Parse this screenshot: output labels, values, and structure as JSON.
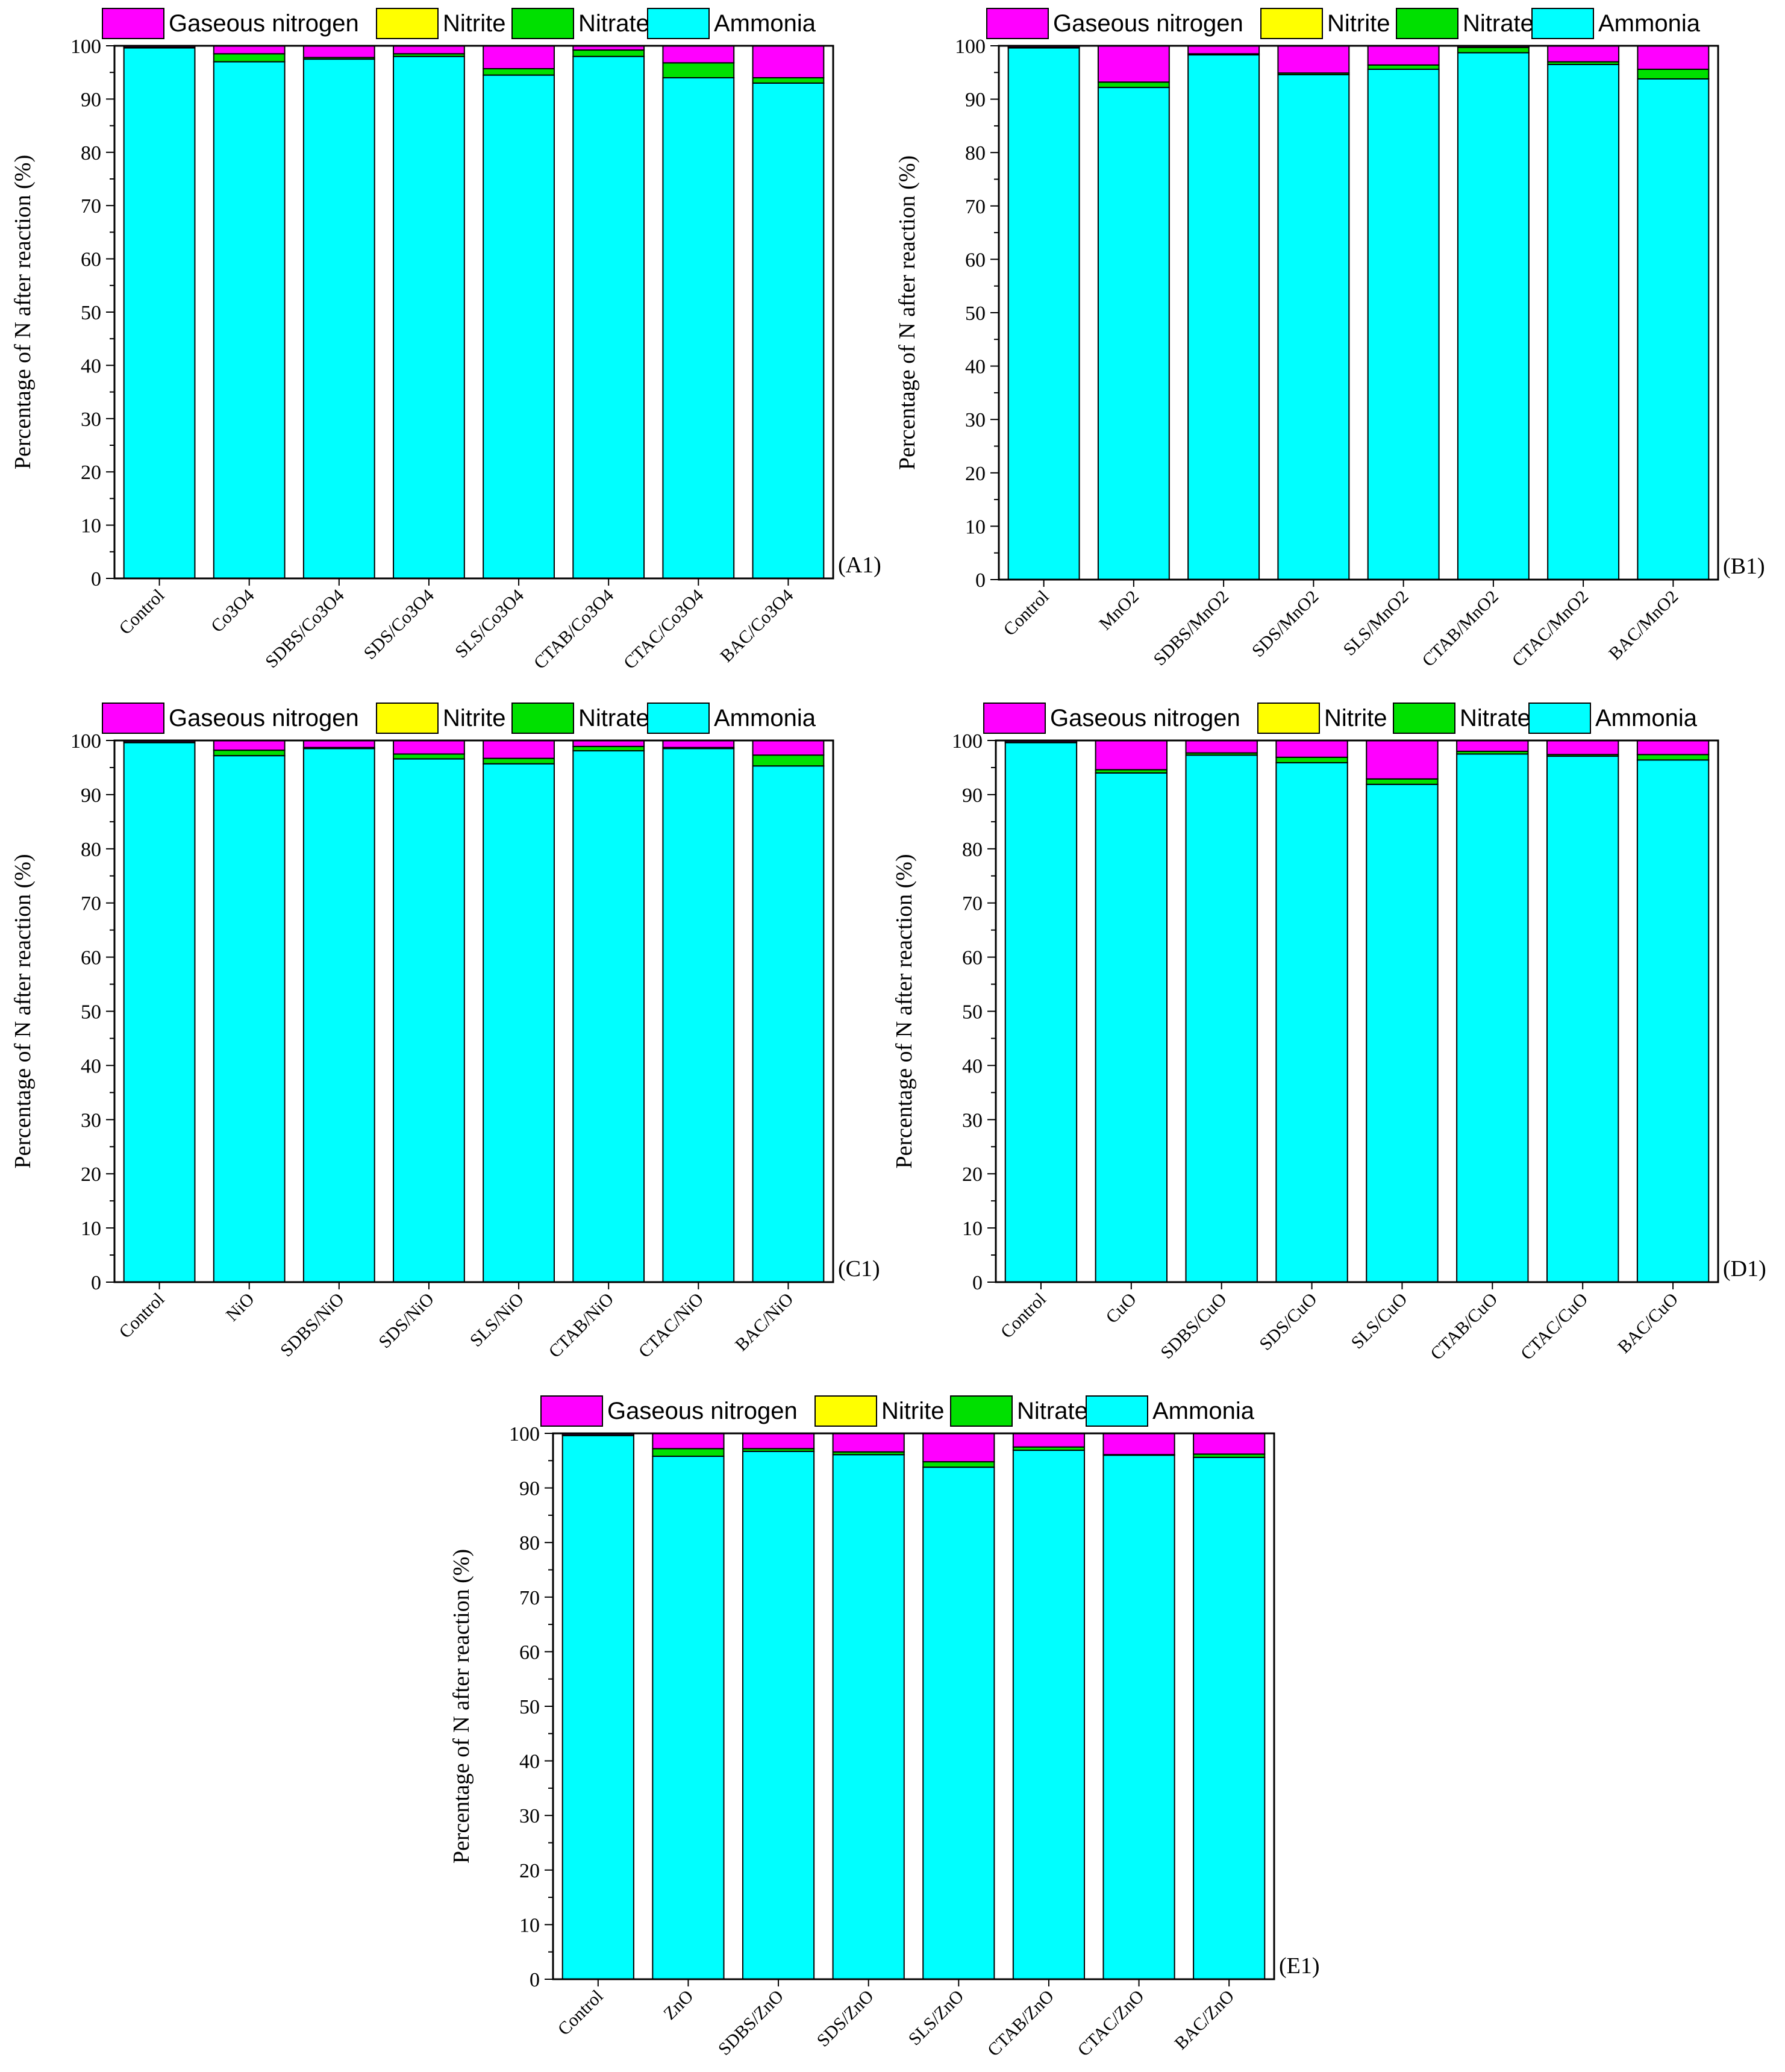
{
  "colors": {
    "ammonia": "#00FFFF",
    "nitrate": "#00E000",
    "nitrite": "#FFFF00",
    "gaseous": "#FF00FF",
    "frame": "#000000"
  },
  "legend": [
    "Gaseous nitrogen",
    "Nitrite",
    "Nitrate",
    "Ammonia"
  ],
  "chart_data": [
    {
      "type": "bar",
      "stacked": true,
      "panel_label": "(A1)",
      "ylabel": "Percentage of N after reaction (%)",
      "ylim": [
        0,
        100
      ],
      "yticks": [
        "0",
        "10",
        "20",
        "30",
        "40",
        "50",
        "60",
        "70",
        "80",
        "90",
        "100"
      ],
      "categories": [
        "Control",
        "Co3O4",
        "SDBS/Co3O4",
        "SDS/Co3O4",
        "SLS/Co3O4",
        "CTAB/Co3O4",
        "CTAC/Co3O4",
        "BAC/Co3O4"
      ],
      "series": [
        {
          "name": "Ammonia",
          "values": [
            99.6,
            97.0,
            97.5,
            98.0,
            94.5,
            98.0,
            94.0,
            93.0
          ]
        },
        {
          "name": "Nitrate",
          "values": [
            0.1,
            1.5,
            0.3,
            0.5,
            1.2,
            1.2,
            2.8,
            1.0
          ]
        },
        {
          "name": "Nitrite",
          "values": [
            0.0,
            0.0,
            0.0,
            0.0,
            0.0,
            0.0,
            0.0,
            0.0
          ]
        },
        {
          "name": "Gaseous nitrogen",
          "values": [
            0.3,
            1.5,
            2.2,
            1.5,
            4.3,
            0.8,
            3.2,
            6.0
          ]
        }
      ]
    },
    {
      "type": "bar",
      "stacked": true,
      "panel_label": "(B1)",
      "ylabel": "Percentage of N after reaction (%)",
      "ylim": [
        0,
        100
      ],
      "yticks": [
        "0",
        "10",
        "20",
        "30",
        "40",
        "50",
        "60",
        "70",
        "80",
        "90",
        "100"
      ],
      "categories": [
        "Control",
        "MnO2",
        "SDBS/MnO2",
        "SDS/MnO2",
        "SLS/MnO2",
        "CTAB/MnO2",
        "CTAC/MnO2",
        "BAC/MnO2"
      ],
      "series": [
        {
          "name": "Ammonia",
          "values": [
            99.6,
            92.2,
            98.3,
            94.6,
            95.6,
            98.7,
            96.5,
            93.8
          ]
        },
        {
          "name": "Nitrate",
          "values": [
            0.1,
            1.0,
            0.2,
            0.3,
            0.8,
            1.0,
            0.5,
            1.8
          ]
        },
        {
          "name": "Nitrite",
          "values": [
            0.0,
            0.0,
            0.0,
            0.0,
            0.0,
            0.0,
            0.0,
            0.0
          ]
        },
        {
          "name": "Gaseous nitrogen",
          "values": [
            0.3,
            6.8,
            1.5,
            5.1,
            3.6,
            0.3,
            3.0,
            4.4
          ]
        }
      ]
    },
    {
      "type": "bar",
      "stacked": true,
      "panel_label": "(C1)",
      "ylabel": "Percentage of N after reaction (%)",
      "ylim": [
        0,
        100
      ],
      "yticks": [
        "0",
        "10",
        "20",
        "30",
        "40",
        "50",
        "60",
        "70",
        "80",
        "90",
        "100"
      ],
      "categories": [
        "Control",
        "NiO",
        "SDBS/NiO",
        "SDS/NiO",
        "SLS/NiO",
        "CTAB/NiO",
        "CTAC/NiO",
        "BAC/NiO"
      ],
      "series": [
        {
          "name": "Ammonia",
          "values": [
            99.6,
            97.2,
            98.5,
            96.6,
            95.7,
            98.1,
            98.5,
            95.3
          ]
        },
        {
          "name": "Nitrate",
          "values": [
            0.1,
            1.0,
            0.2,
            0.9,
            1.0,
            0.8,
            0.2,
            2.0
          ]
        },
        {
          "name": "Nitrite",
          "values": [
            0.0,
            0.0,
            0.0,
            0.0,
            0.0,
            0.0,
            0.0,
            0.0
          ]
        },
        {
          "name": "Gaseous nitrogen",
          "values": [
            0.3,
            1.8,
            1.3,
            2.5,
            3.3,
            1.1,
            1.3,
            2.7
          ]
        }
      ]
    },
    {
      "type": "bar",
      "stacked": true,
      "panel_label": "(D1)",
      "ylabel": "Percentage of N after reaction (%)",
      "ylim": [
        0,
        100
      ],
      "yticks": [
        "0",
        "10",
        "20",
        "30",
        "40",
        "50",
        "60",
        "70",
        "80",
        "90",
        "100"
      ],
      "categories": [
        "Control",
        "CuO",
        "SDBS/CuO",
        "SDS/CuO",
        "SLS/CuO",
        "CTAB/CuO",
        "CTAC/CuO",
        "BAC/CuO"
      ],
      "series": [
        {
          "name": "Ammonia",
          "values": [
            99.6,
            94.0,
            97.3,
            95.9,
            91.9,
            97.5,
            97.1,
            96.4
          ]
        },
        {
          "name": "Nitrate",
          "values": [
            0.1,
            0.6,
            0.4,
            1.0,
            1.0,
            0.5,
            0.3,
            1.0
          ]
        },
        {
          "name": "Nitrite",
          "values": [
            0.0,
            0.0,
            0.0,
            0.0,
            0.0,
            0.0,
            0.0,
            0.0
          ]
        },
        {
          "name": "Gaseous nitrogen",
          "values": [
            0.3,
            5.4,
            2.3,
            3.1,
            7.1,
            2.0,
            2.6,
            2.6
          ]
        }
      ]
    },
    {
      "type": "bar",
      "stacked": true,
      "panel_label": "(E1)",
      "ylabel": "Percentage of N after reaction (%)",
      "ylim": [
        0,
        100
      ],
      "yticks": [
        "0",
        "10",
        "20",
        "30",
        "40",
        "50",
        "60",
        "70",
        "80",
        "90",
        "100"
      ],
      "categories": [
        "Control",
        "ZnO",
        "SDBS/ZnO",
        "SDS/ZnO",
        "SLS/ZnO",
        "CTAB/ZnO",
        "CTAC/ZnO",
        "BAC/ZnO"
      ],
      "series": [
        {
          "name": "Ammonia",
          "values": [
            99.6,
            95.8,
            96.7,
            96.1,
            93.8,
            96.9,
            96.0,
            95.6
          ]
        },
        {
          "name": "Nitrate",
          "values": [
            0.1,
            1.4,
            0.5,
            0.5,
            1.0,
            0.6,
            0.1,
            0.6
          ]
        },
        {
          "name": "Nitrite",
          "values": [
            0.0,
            0.0,
            0.0,
            0.0,
            0.0,
            0.0,
            0.0,
            0.0
          ]
        },
        {
          "name": "Gaseous nitrogen",
          "values": [
            0.3,
            2.8,
            2.8,
            3.4,
            5.2,
            2.5,
            3.9,
            3.8
          ]
        }
      ]
    }
  ]
}
